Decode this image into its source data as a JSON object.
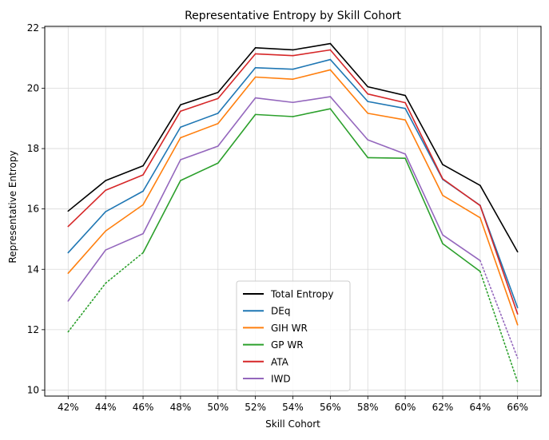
{
  "chart_data": {
    "type": "line",
    "title": "Representative Entropy by Skill Cohort",
    "xlabel": "Skill Cohort",
    "ylabel": "Representative Entropy",
    "categories": [
      "42%",
      "44%",
      "46%",
      "48%",
      "50%",
      "52%",
      "54%",
      "56%",
      "58%",
      "60%",
      "62%",
      "64%",
      "66%"
    ],
    "ylim": [
      9.8,
      22.05
    ],
    "yticks": [
      10,
      12,
      14,
      16,
      18,
      20,
      22
    ],
    "grid": true,
    "legend_position": "lower-center",
    "series": [
      {
        "name": "Total Entropy",
        "color": "#000000",
        "values": [
          15.93,
          16.94,
          17.43,
          19.45,
          19.86,
          21.34,
          21.27,
          21.48,
          20.05,
          19.76,
          17.47,
          16.78,
          14.58
        ],
        "dotted": []
      },
      {
        "name": "DEq",
        "color": "#1f77b4",
        "values": [
          14.55,
          15.91,
          16.59,
          18.71,
          19.17,
          20.68,
          20.63,
          20.95,
          19.56,
          19.33,
          16.98,
          16.12,
          12.73
        ],
        "dotted": []
      },
      {
        "name": "GIH WR",
        "color": "#ff7f0e",
        "values": [
          13.87,
          15.27,
          16.14,
          18.36,
          18.83,
          20.37,
          20.3,
          20.61,
          19.17,
          18.95,
          16.45,
          15.71,
          12.16
        ],
        "dotted": []
      },
      {
        "name": "GP WR",
        "color": "#2ca02c",
        "values": [
          11.93,
          13.54,
          14.55,
          16.94,
          17.52,
          19.13,
          19.06,
          19.32,
          17.7,
          17.68,
          14.85,
          13.93,
          10.27
        ],
        "dotted": [
          0,
          1,
          11
        ]
      },
      {
        "name": "ATA",
        "color": "#d62728",
        "values": [
          15.42,
          16.62,
          17.13,
          19.24,
          19.66,
          21.14,
          21.08,
          21.27,
          19.81,
          19.52,
          17.0,
          16.11,
          12.52
        ],
        "dotted": []
      },
      {
        "name": "IWD",
        "color": "#9467bd",
        "values": [
          12.95,
          14.64,
          15.18,
          17.63,
          18.08,
          19.68,
          19.53,
          19.72,
          18.29,
          17.82,
          15.14,
          14.29,
          11.06
        ],
        "dotted": [
          11
        ]
      }
    ]
  }
}
